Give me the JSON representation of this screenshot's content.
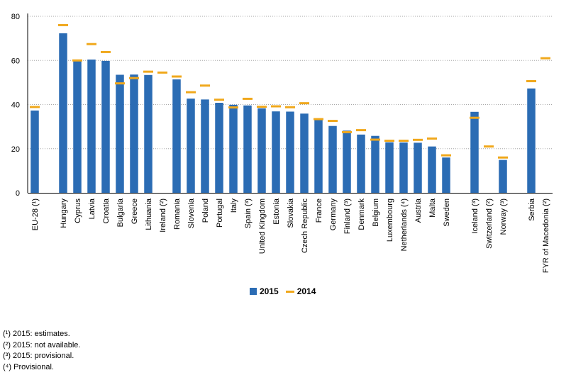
{
  "chart_data": {
    "type": "bar",
    "categories": [
      "EU-28 (¹)",
      "",
      "Hungary",
      "Cyprus",
      "Latvia",
      "Croatia",
      "Bulgaria",
      "Greece",
      "Lithuania",
      "Ireland (²)",
      "Romania",
      "Slovenia",
      "Poland",
      "Portugal",
      "Italy",
      "Spain (³)",
      "United Kingdom",
      "Estonia",
      "Slovakia",
      "Czech Republic",
      "France",
      "Germany",
      "Finland (³)",
      "Denmark",
      "Belgium",
      "Luxembourg",
      "Netherlands (⁴)",
      "Austria",
      "Malta",
      "Sweden",
      "",
      "Iceland (³)",
      "Switzerland (²)",
      "Norway (³)",
      "",
      "Serbia",
      "FYR of Macedonia (²)"
    ],
    "series": [
      {
        "name": "2015",
        "type": "bar",
        "color": "#2b6cb4",
        "values": [
          37.3,
          null,
          72.3,
          59.6,
          60.4,
          59.8,
          53.5,
          53.6,
          53.4,
          null,
          51.4,
          42.7,
          42.3,
          40.8,
          39.9,
          39.6,
          38.3,
          36.9,
          36.8,
          35.9,
          33.3,
          30.3,
          28.2,
          26.4,
          25.8,
          22.9,
          22.8,
          22.7,
          21.0,
          16.0,
          null,
          36.7,
          null,
          14.9,
          null,
          47.3,
          null
        ]
      },
      {
        "name": "2014",
        "type": "marker",
        "color": "#f0a81c",
        "values": [
          38.9,
          null,
          76.0,
          60.0,
          67.4,
          63.8,
          49.6,
          52.0,
          54.9,
          54.5,
          52.7,
          45.6,
          48.6,
          42.2,
          38.7,
          42.6,
          39.0,
          39.2,
          38.8,
          40.6,
          33.4,
          32.6,
          27.5,
          28.4,
          24.1,
          23.6,
          23.6,
          24.0,
          24.6,
          17.0,
          null,
          34.0,
          21.0,
          16.0,
          null,
          50.6,
          61.0
        ]
      }
    ],
    "ylim": [
      0,
      80
    ],
    "yticks": [
      0,
      20,
      40,
      60,
      80
    ],
    "grid": true,
    "legend_position": "bottom"
  },
  "legend": [
    {
      "label": "2015",
      "kind": "bar",
      "color": "#2b6cb4"
    },
    {
      "label": "2014",
      "kind": "marker",
      "color": "#f0a81c"
    }
  ],
  "notes": [
    "(¹) 2015: estimates.",
    "(²) 2015: not available.",
    "(³) 2015: provisional.",
    "(⁴) Provisional."
  ]
}
